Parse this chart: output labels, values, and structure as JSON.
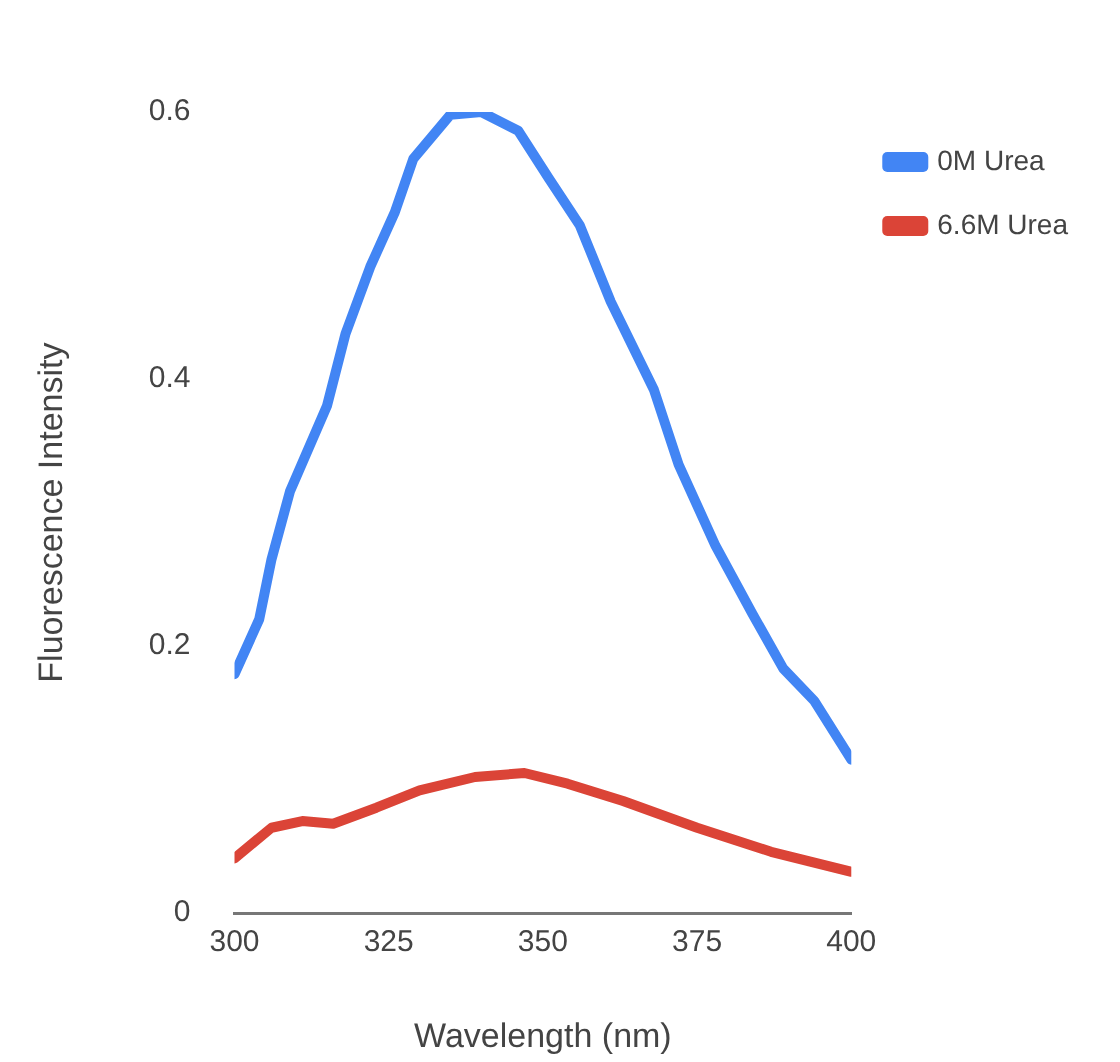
{
  "chart_data": {
    "type": "line",
    "xlabel": "Wavelength (nm)",
    "ylabel": "Fluorescence Intensity",
    "xlim": [
      300,
      400
    ],
    "xticks": [
      300,
      325,
      350,
      375,
      400
    ],
    "ylim": [
      0,
      0.6
    ],
    "yticks": [
      0,
      0.2,
      0.4,
      0.6
    ],
    "grid": false,
    "legend": "top right",
    "marker": "none",
    "line_style": "solid",
    "series": [
      {
        "name": "0M Urea",
        "color": "#4285f4",
        "x": [
          300,
          304,
          306,
          309,
          315,
          318,
          322,
          326,
          329,
          335,
          340,
          346,
          351,
          356,
          361,
          368,
          372,
          378,
          384,
          389,
          394,
          400
        ],
        "values": [
          0.179,
          0.22,
          0.265,
          0.316,
          0.38,
          0.434,
          0.484,
          0.525,
          0.565,
          0.598,
          0.6,
          0.586,
          0.55,
          0.515,
          0.458,
          0.392,
          0.336,
          0.275,
          0.224,
          0.183,
          0.159,
          0.115
        ]
      },
      {
        "name": "6.6M Urea",
        "color": "#db4437",
        "x": [
          300,
          306,
          311,
          316,
          323,
          330,
          339,
          347,
          354,
          363,
          375,
          387,
          400
        ],
        "values": [
          0.041,
          0.064,
          0.069,
          0.067,
          0.079,
          0.092,
          0.102,
          0.105,
          0.097,
          0.084,
          0.064,
          0.046,
          0.031
        ]
      }
    ]
  }
}
